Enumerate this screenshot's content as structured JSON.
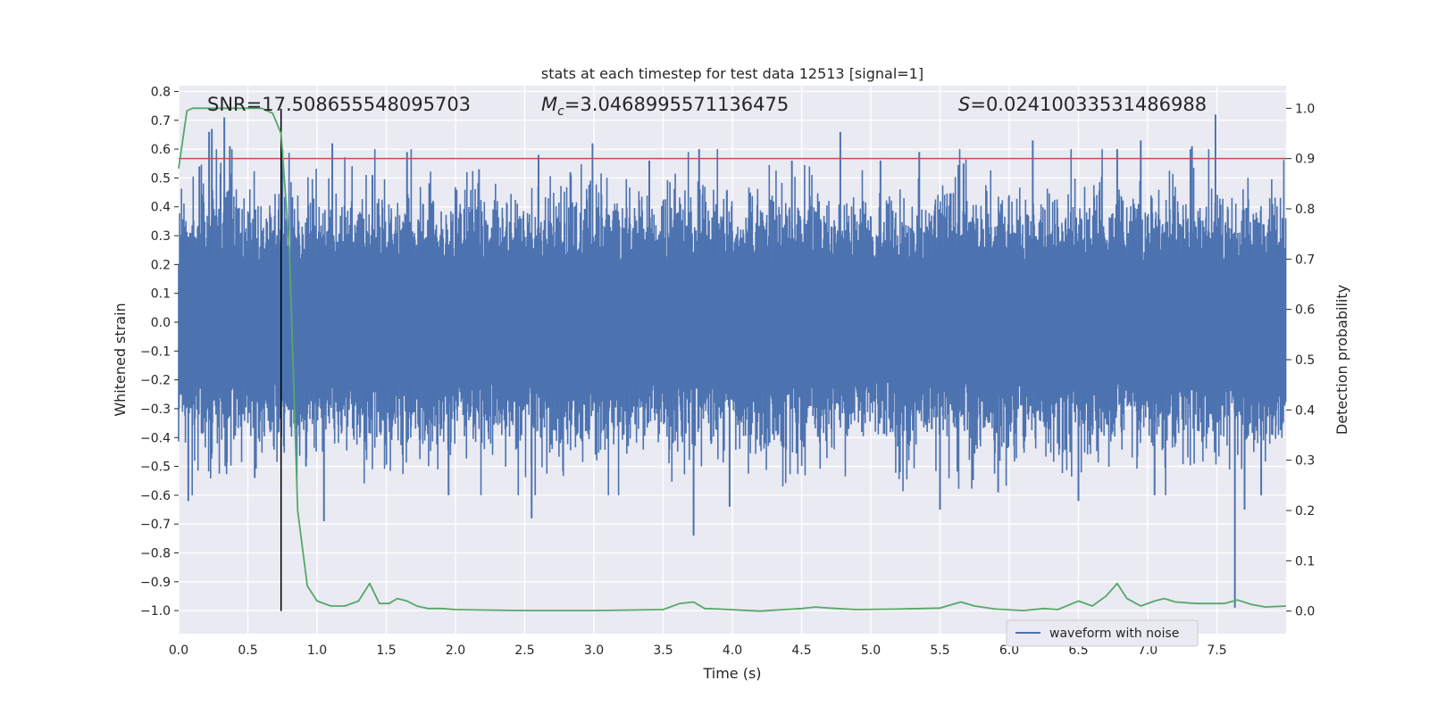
{
  "chart_data": {
    "type": "line",
    "title": "stats at each timestep for test data 12513 [signal=1]",
    "xlabel": "Time (s)",
    "ylabel_left": "Whitened strain",
    "ylabel_right": "Detection probability",
    "xlim": [
      0.0,
      8.0
    ],
    "ylim_left": [
      -1.08,
      0.82
    ],
    "ylim_right": [
      -0.045,
      1.045
    ],
    "x_ticks": [
      "0.0",
      "0.5",
      "1.0",
      "1.5",
      "2.0",
      "2.5",
      "3.0",
      "3.5",
      "4.0",
      "4.5",
      "5.0",
      "5.5",
      "6.0",
      "6.5",
      "7.0",
      "7.5"
    ],
    "y_left_ticks": [
      "0.8",
      "0.7",
      "0.6",
      "0.5",
      "0.4",
      "0.3",
      "0.2",
      "0.1",
      "0.0",
      "−0.1",
      "−0.2",
      "−0.3",
      "−0.4",
      "−0.5",
      "−0.6",
      "−0.7",
      "−0.8",
      "−0.9",
      "−1.0"
    ],
    "y_right_ticks": [
      "1.0",
      "0.9",
      "0.8",
      "0.7",
      "0.6",
      "0.5",
      "0.4",
      "0.3",
      "0.2",
      "0.1",
      "0.0"
    ],
    "annotations": {
      "snr": "SNR=17.508655548095703",
      "mc_symbol": "M",
      "mc_sub": "c",
      "mc_value": "=3.0468995571136475",
      "s_symbol": "S",
      "s_value": "=0.02410033531486988"
    },
    "legend": {
      "placement": "lower-right",
      "entries": [
        "waveform with noise"
      ]
    },
    "grid": true,
    "threshold_probability": 0.9,
    "event_time": 0.74,
    "series": [
      {
        "name": "waveform with noise",
        "axis": "left",
        "kind": "dense-noise",
        "spikes": [
          [
            0.07,
            -0.62
          ],
          [
            0.15,
            0.54
          ],
          [
            0.22,
            0.66
          ],
          [
            0.24,
            0.67
          ],
          [
            0.33,
            0.71
          ],
          [
            0.37,
            0.61
          ],
          [
            0.55,
            -0.54
          ],
          [
            0.75,
            0.6
          ],
          [
            0.76,
            -0.43
          ],
          [
            0.85,
            -0.37
          ],
          [
            0.92,
            -0.5
          ],
          [
            1.05,
            -0.69
          ],
          [
            1.11,
            0.62
          ],
          [
            1.4,
            0.51
          ],
          [
            1.65,
            0.59
          ],
          [
            1.95,
            -0.6
          ],
          [
            2.17,
            0.53
          ],
          [
            2.55,
            -0.68
          ],
          [
            2.6,
            0.58
          ],
          [
            2.83,
            0.52
          ],
          [
            2.99,
            0.62
          ],
          [
            3.4,
            0.56
          ],
          [
            3.72,
            -0.74
          ],
          [
            3.76,
            0.6
          ],
          [
            3.98,
            -0.64
          ],
          [
            4.43,
            0.56
          ],
          [
            4.78,
            0.66
          ],
          [
            5.07,
            0.56
          ],
          [
            5.35,
            0.59
          ],
          [
            5.5,
            -0.65
          ],
          [
            5.67,
            0.55
          ],
          [
            5.92,
            -0.59
          ],
          [
            6.17,
            0.63
          ],
          [
            6.5,
            -0.62
          ],
          [
            6.78,
            0.6
          ],
          [
            6.95,
            0.63
          ],
          [
            7.05,
            -0.6
          ],
          [
            7.32,
            0.61
          ],
          [
            7.49,
            0.72
          ],
          [
            7.63,
            -0.99
          ],
          [
            7.7,
            -0.65
          ],
          [
            7.82,
            -0.6
          ]
        ]
      },
      {
        "name": "",
        "axis": "right",
        "kind": "line",
        "x": [
          0.0,
          0.06,
          0.1,
          0.2,
          0.3,
          0.4,
          0.5,
          0.6,
          0.68,
          0.74,
          0.8,
          0.86,
          0.93,
          1.0,
          1.1,
          1.2,
          1.3,
          1.38,
          1.45,
          1.52,
          1.58,
          1.65,
          1.72,
          1.8,
          1.9,
          2.0,
          2.2,
          2.5,
          3.0,
          3.5,
          3.62,
          3.72,
          3.8,
          3.9,
          4.2,
          4.5,
          4.6,
          4.7,
          4.9,
          5.2,
          5.5,
          5.65,
          5.75,
          5.9,
          6.1,
          6.25,
          6.35,
          6.5,
          6.6,
          6.7,
          6.78,
          6.85,
          6.95,
          7.05,
          7.12,
          7.2,
          7.35,
          7.55,
          7.65,
          7.75,
          7.85,
          8.0
        ],
        "values": [
          0.88,
          0.995,
          1.0,
          1.0,
          1.0,
          1.0,
          1.0,
          1.0,
          0.99,
          0.95,
          0.72,
          0.2,
          0.05,
          0.02,
          0.01,
          0.01,
          0.02,
          0.055,
          0.015,
          0.015,
          0.025,
          0.02,
          0.01,
          0.005,
          0.005,
          0.003,
          0.002,
          0.001,
          0.001,
          0.003,
          0.015,
          0.018,
          0.005,
          0.004,
          0.0,
          0.005,
          0.008,
          0.006,
          0.003,
          0.004,
          0.006,
          0.018,
          0.01,
          0.004,
          0.001,
          0.005,
          0.003,
          0.02,
          0.01,
          0.03,
          0.055,
          0.025,
          0.01,
          0.02,
          0.025,
          0.018,
          0.015,
          0.015,
          0.022,
          0.013,
          0.008,
          0.01
        ]
      }
    ]
  }
}
